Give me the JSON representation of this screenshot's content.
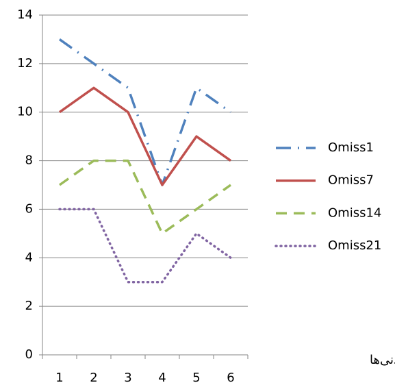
{
  "chart_data": {
    "type": "line",
    "categories": [
      "1",
      "2",
      "3",
      "4",
      "5",
      "6"
    ],
    "x_label": "آزمودنی‌ها",
    "series": [
      {
        "name": "Omiss1",
        "color": "#4f81bd",
        "style": "dashdot",
        "values": [
          13,
          12,
          11,
          7,
          11,
          10
        ]
      },
      {
        "name": "Omiss7",
        "color": "#c0504d",
        "style": "solid",
        "values": [
          10,
          11,
          10,
          7,
          9,
          8
        ]
      },
      {
        "name": "Omiss14",
        "color": "#9bbb59",
        "style": "dashed",
        "values": [
          7,
          8,
          8,
          5,
          6,
          7
        ]
      },
      {
        "name": "Omiss21",
        "color": "#8064a2",
        "style": "dotted",
        "values": [
          6,
          6,
          3,
          3,
          5,
          4
        ]
      }
    ],
    "ylim": [
      0,
      14
    ],
    "yticks": [
      0,
      2,
      4,
      6,
      8,
      10,
      12,
      14
    ],
    "grid": true,
    "legend": "right"
  }
}
